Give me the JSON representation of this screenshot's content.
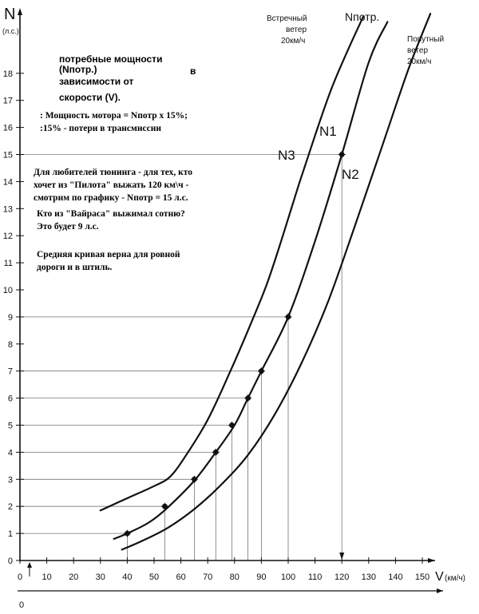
{
  "chart_data": {
    "type": "line",
    "title": "потребные мощности (Nпотр.) в зависимости от скорости (V).",
    "title_parts": {
      "line1": "потребные мощности",
      "line2": "(Nпотр.)",
      "line2_suffix": "в",
      "line3": "зависимости от",
      "line4": "скорости (V)."
    },
    "ylabel": "N",
    "ylabel_unit": "(л.с.)",
    "xlabel": "V",
    "xlabel_unit": "(км/ч)",
    "xlim": [
      0,
      160
    ],
    "ylim": [
      0,
      19.5
    ],
    "x_ticks": [
      0,
      10,
      20,
      30,
      40,
      50,
      60,
      70,
      80,
      90,
      100,
      110,
      120,
      130,
      140,
      150
    ],
    "y_ticks": [
      0,
      1,
      2,
      3,
      4,
      5,
      6,
      7,
      8,
      9,
      10,
      11,
      12,
      13,
      14,
      15,
      16,
      17,
      18
    ],
    "y_tick_labels": [
      "0",
      "1",
      "2",
      "3",
      "4",
      "5",
      "6",
      "7",
      "8",
      "9",
      "10",
      "11",
      "12",
      "13",
      "14",
      "15",
      "16",
      "17",
      "18"
    ],
    "below_axis_label": "0",
    "series": [
      {
        "name": "N3",
        "legend": "Встречный ветер 20км/ч",
        "x": [
          30,
          40,
          50,
          56,
          62,
          70,
          78,
          85,
          92,
          98,
          104,
          110,
          116,
          122,
          128
        ],
        "y": [
          1.85,
          2.3,
          2.75,
          3.1,
          3.9,
          5.2,
          6.9,
          8.5,
          10.2,
          12.0,
          13.9,
          15.7,
          17.4,
          18.8,
          20.1
        ]
      },
      {
        "name": "N1",
        "legend": "Nпотр.",
        "x": [
          35,
          40,
          48,
          55,
          65,
          73,
          80,
          85,
          90,
          100,
          110,
          120,
          130,
          137
        ],
        "y": [
          0.8,
          1.0,
          1.4,
          1.95,
          2.95,
          4.0,
          5.0,
          6.0,
          7.0,
          9.0,
          11.8,
          15.0,
          18.4,
          19.9
        ]
      },
      {
        "name": "N2",
        "legend": "Попутный ветер 20км/ч",
        "x": [
          38,
          45,
          55,
          65,
          75,
          85,
          95,
          105,
          115,
          125,
          135,
          145,
          153
        ],
        "y": [
          0.4,
          0.7,
          1.2,
          1.9,
          2.8,
          3.9,
          5.4,
          7.3,
          9.6,
          12.4,
          15.3,
          18.2,
          20.2
        ]
      }
    ],
    "marked_points": {
      "x": [
        40,
        54,
        65,
        73,
        79,
        85,
        90,
        100,
        120
      ],
      "y": [
        1,
        2,
        3,
        4,
        5,
        6,
        7,
        9,
        15
      ]
    },
    "curve_labels": {
      "N1": "N1",
      "N2": "N2",
      "N3": "N3"
    },
    "legend_headers": {
      "headwind": [
        "Встречный",
        "ветер",
        "20км/ч"
      ],
      "npotr": "Nпотр.",
      "tailwind": [
        "Попутный",
        "ветер",
        "20км/ч"
      ]
    },
    "notes": [
      ": Мощность мотора = Nпотр х 15%;",
      ":15% - потери в трансмиссии",
      "Для любителей тюнинга - для тех, кто",
      "хочет из \"Пилота\" выжать 120 км\\ч -",
      "смотрим по графику - Nпотр = 15 л.с.",
      "Кто из \"Вайраса\" выжимал сотню?",
      "Это будет 9 л.с.",
      "Средняя кривая верна для ровной",
      "дороги и в штиль."
    ],
    "grid": "partial (reference lines for marked points)",
    "colors": {
      "ink": "#111111",
      "paper": "#ffffff",
      "guide": "#777777"
    }
  }
}
